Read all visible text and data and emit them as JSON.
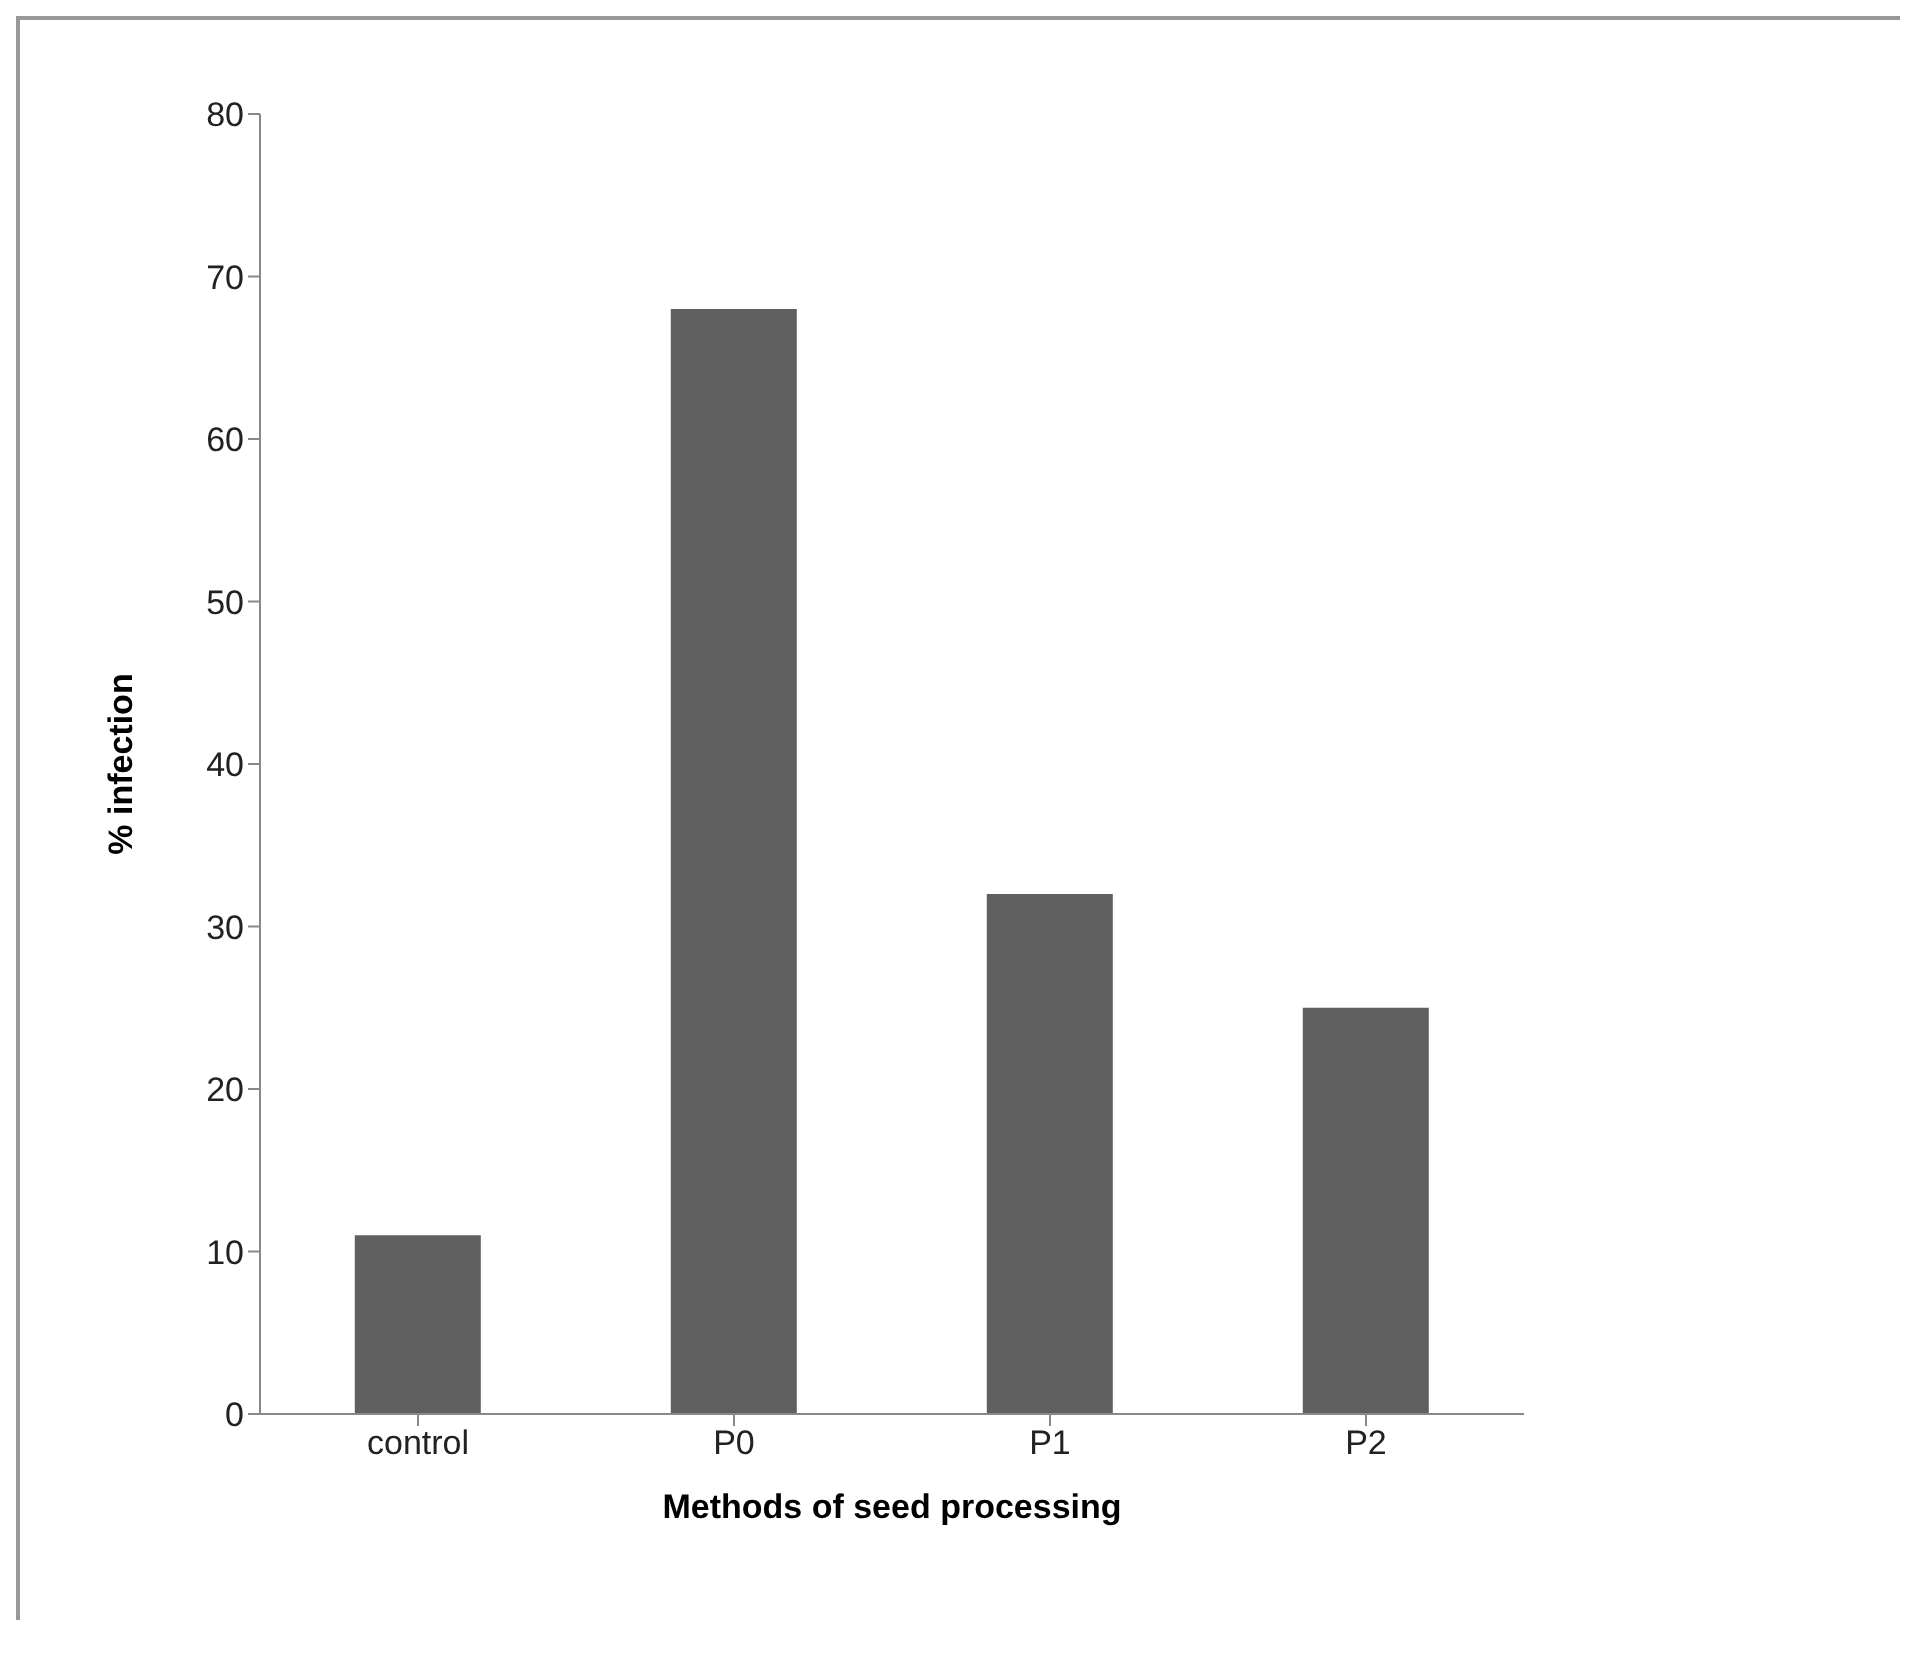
{
  "chart_data": {
    "type": "bar",
    "xlabel": "Methods of seed processing",
    "ylabel": "% infection",
    "categories": [
      "control",
      "P0",
      "P1",
      "P2"
    ],
    "values": [
      11,
      68,
      32,
      25
    ],
    "color": "#606060",
    "ylim": [
      0,
      80
    ],
    "yticks": [
      0,
      10,
      20,
      30,
      40,
      50,
      60,
      70,
      80
    ],
    "grid": false,
    "legend": false
  }
}
